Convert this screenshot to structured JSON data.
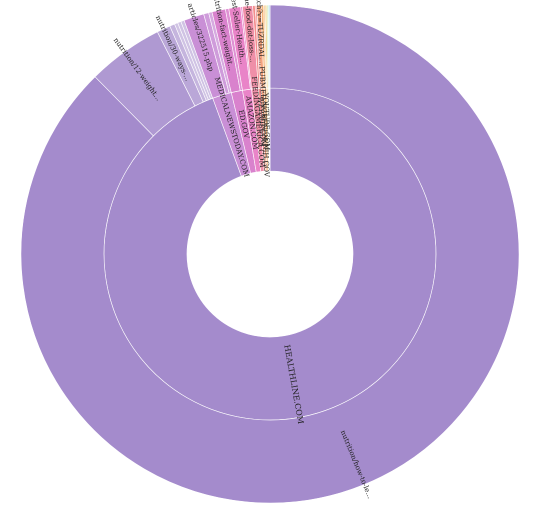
{
  "chart_data": {
    "type": "sunburst",
    "rings": [
      "domain",
      "path"
    ],
    "domains": [
      {
        "name": "HEALTHLINE.COM",
        "color": "#a48bcc",
        "children": [
          {
            "name": "nutrition/how-to-le...",
            "value": 800
          },
          {
            "name": "nutrition/12-weight...",
            "value": 45
          },
          {
            "name": "nutrition/30-ways-...",
            "value": 8
          },
          {
            "name": "",
            "value": 3
          },
          {
            "name": "",
            "value": 2
          },
          {
            "name": "",
            "value": 2
          },
          {
            "name": "",
            "value": 2
          }
        ]
      },
      {
        "name": "MEDICALNEWSTODAY.COM",
        "color": "#c98fd6",
        "children": [
          {
            "name": "articles/322515.php",
            "value": 12
          },
          {
            "name": "",
            "value": 3
          },
          {
            "name": "",
            "value": 2
          }
        ]
      },
      {
        "name": "ED.GOV",
        "color": "#d982cd",
        "children": [
          {
            "name": "nutrition-fact-weight...",
            "value": 8
          },
          {
            "name": "",
            "value": 2
          }
        ]
      },
      {
        "name": "AMAZON.COM",
        "color": "#e984c8",
        "children": [
          {
            "name": "Best-Seller-Health...",
            "value": 7
          },
          {
            "name": "",
            "value": 1
          }
        ]
      },
      {
        "name": "FEEDINGAMERICA.COM",
        "color": "#ef8fa8",
        "children": [
          {
            "name": "fine-food-dot-loss-...",
            "value": 6
          }
        ]
      },
      {
        "name": "WEBMD.COM",
        "color": "#f38e8e",
        "children": [
          {
            "name": "",
            "value": 1.5
          },
          {
            "name": "",
            "value": 1
          }
        ]
      },
      {
        "name": "PUBMED.NCBI.NLM.NIH.GOV",
        "color": "#f4a37e",
        "children": [
          {
            "name": "watch?v=TUZRDAL...",
            "value": 2.5
          }
        ]
      },
      {
        "name": "YOUTUBE.COM",
        "color": "#f6b77b",
        "children": [
          {
            "name": "",
            "value": 1.5
          },
          {
            "name": "",
            "value": 0.8
          }
        ]
      },
      {
        "name": "",
        "color": "#f2d484",
        "children": [
          {
            "name": "",
            "value": 1
          }
        ]
      },
      {
        "name": "",
        "color": "#c6e39b",
        "children": [
          {
            "name": "",
            "value": 0.7
          }
        ]
      },
      {
        "name": "",
        "color": "#9fe0d2",
        "children": [
          {
            "name": "",
            "value": 0.6
          }
        ]
      },
      {
        "name": "",
        "color": "#8fc7e8",
        "children": [
          {
            "name": "",
            "value": 0.6
          }
        ]
      }
    ]
  }
}
